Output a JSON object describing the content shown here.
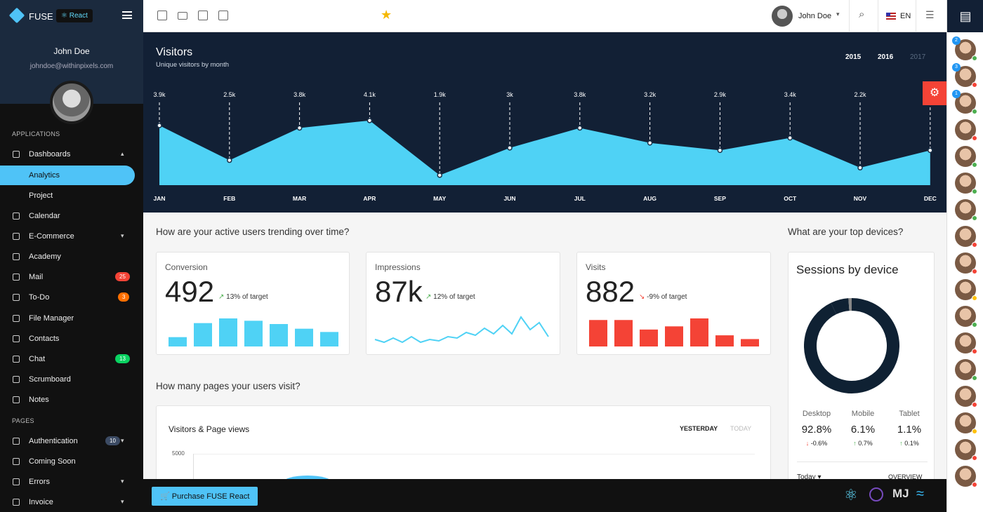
{
  "sidebar": {
    "brand": "FUSE",
    "badge": "React",
    "user_name": "John Doe",
    "user_email": "johndoe@withinpixels.com",
    "sections": [
      "APPLICATIONS",
      "PAGES"
    ],
    "items": [
      {
        "label": "Dashboards",
        "icon": "dashboard-icon",
        "chevron": "up"
      },
      {
        "label": "Analytics",
        "active": true
      },
      {
        "label": "Project"
      },
      {
        "label": "Calendar",
        "icon": "calendar-icon"
      },
      {
        "label": "E-Commerce",
        "icon": "cart-icon",
        "chevron": "down"
      },
      {
        "label": "Academy",
        "icon": "school-icon"
      },
      {
        "label": "Mail",
        "icon": "mail-icon",
        "badge": "25",
        "badge_color": "#f44336"
      },
      {
        "label": "To-Do",
        "icon": "check-box-icon",
        "badge": "3",
        "badge_color": "#ff6f00"
      },
      {
        "label": "File Manager",
        "icon": "folder-icon"
      },
      {
        "label": "Contacts",
        "icon": "contacts-icon"
      },
      {
        "label": "Chat",
        "icon": "chat-icon",
        "badge": "13",
        "badge_color": "#09d261"
      },
      {
        "label": "Scrumboard",
        "icon": "board-icon"
      },
      {
        "label": "Notes",
        "icon": "note-icon"
      },
      {
        "label": "Authentication",
        "icon": "lock-icon",
        "badge": "10",
        "badge_color": "#3c4b64",
        "chevron": "down"
      },
      {
        "label": "Coming Soon",
        "icon": "alarm-icon"
      },
      {
        "label": "Errors",
        "icon": "error-icon",
        "chevron": "down"
      },
      {
        "label": "Invoice",
        "icon": "receipt-icon",
        "chevron": "down"
      }
    ]
  },
  "toolbar": {
    "user_name": "John Doe",
    "language": "EN",
    "icons": [
      "calendar-icon",
      "mail-icon",
      "contacts-icon",
      "check-box-icon",
      "star-icon"
    ]
  },
  "visitors": {
    "title": "Visitors",
    "subtitle": "Unique visitors by month",
    "years": [
      "2015",
      "2016",
      "2017"
    ],
    "selected_year": "2016"
  },
  "chart_data": [
    {
      "type": "area",
      "title": "Visitors",
      "categories": [
        "JAN",
        "FEB",
        "MAR",
        "APR",
        "MAY",
        "JUN",
        "JUL",
        "AUG",
        "SEP",
        "OCT",
        "NOV",
        "DEC"
      ],
      "values": [
        3.9,
        2.5,
        3.8,
        4.1,
        1.9,
        3.0,
        3.8,
        3.2,
        2.9,
        3.4,
        2.2,
        2.9
      ],
      "labels": [
        "3.9k",
        "2.5k",
        "3.8k",
        "4.1k",
        "1.9k",
        "3k",
        "3.8k",
        "3.2k",
        "2.9k",
        "3.4k",
        "2.2k",
        ""
      ],
      "unit": "k",
      "color": "#4fd2f5"
    },
    {
      "type": "bar",
      "title": "Conversion",
      "values": [
        2,
        5,
        6,
        5.5,
        4.8,
        3.8,
        3.1
      ],
      "color": "#4fd2f5"
    },
    {
      "type": "line",
      "title": "Impressions",
      "values": [
        2,
        1,
        2.5,
        1,
        3,
        1,
        2,
        1.5,
        3,
        2.5,
        4.5,
        3.5,
        6,
        4,
        7,
        4,
        10,
        5.5,
        8,
        3
      ],
      "color": "#4fd2f5"
    },
    {
      "type": "bar",
      "title": "Visits",
      "values": [
        5,
        5,
        3.2,
        3.8,
        5.3,
        2.108,
        1.4
      ],
      "color": "#f44336"
    },
    {
      "type": "pie",
      "title": "Sessions by device",
      "categories": [
        "Desktop",
        "Mobile",
        "Tablet"
      ],
      "values": [
        92.8,
        6.1,
        1.1
      ],
      "colors": [
        "#0f2133",
        "#0f2133",
        "#888"
      ]
    }
  ],
  "main": {
    "q1": "How are your active users trending over time?",
    "q2": "How many pages your users visit?",
    "q3": "What are your top devices?",
    "cards": [
      {
        "title": "Conversion",
        "value": "492",
        "target": "13% of target",
        "trend": "up"
      },
      {
        "title": "Impressions",
        "value": "87k",
        "target": "12% of target",
        "trend": "up"
      },
      {
        "title": "Visits",
        "value": "882",
        "target": "-9% of target",
        "trend": "down"
      }
    ],
    "pageviews": {
      "title": "Visitors & Page views",
      "tabs": [
        "YESTERDAY",
        "TODAY"
      ],
      "ytick": "5000"
    },
    "devices": {
      "title": "Sessions by device",
      "items": [
        {
          "name": "Desktop",
          "value": "92.8%",
          "change": "-0.6%",
          "dir": "down"
        },
        {
          "name": "Mobile",
          "value": "6.1%",
          "change": "0.7%",
          "dir": "up"
        },
        {
          "name": "Tablet",
          "value": "1.1%",
          "change": "0.1%",
          "dir": "up"
        }
      ],
      "period": "Today",
      "overview": "OVERVIEW"
    }
  },
  "footer": {
    "purchase": "Purchase FUSE React",
    "logos": [
      "react-logo",
      "redux-logo",
      "material-ui-logo",
      "tailwind-logo"
    ]
  },
  "contacts": [
    {
      "unread": "2",
      "status": "#4caf50"
    },
    {
      "unread": "3",
      "status": "#f44336"
    },
    {
      "unread": "1",
      "status": "#4caf50"
    },
    {
      "status": "#f44336"
    },
    {
      "status": "#4caf50"
    },
    {
      "status": "#4caf50"
    },
    {
      "status": "#4caf50"
    },
    {
      "status": "#f44336"
    },
    {
      "status": "#f44336"
    },
    {
      "status": "#ffc107"
    },
    {
      "status": "#4caf50"
    },
    {
      "status": "#f44336"
    },
    {
      "status": "#4caf50"
    },
    {
      "status": "#f44336"
    },
    {
      "status": "#ffc107"
    },
    {
      "status": "#f44336"
    },
    {
      "status": "#f44336"
    }
  ]
}
